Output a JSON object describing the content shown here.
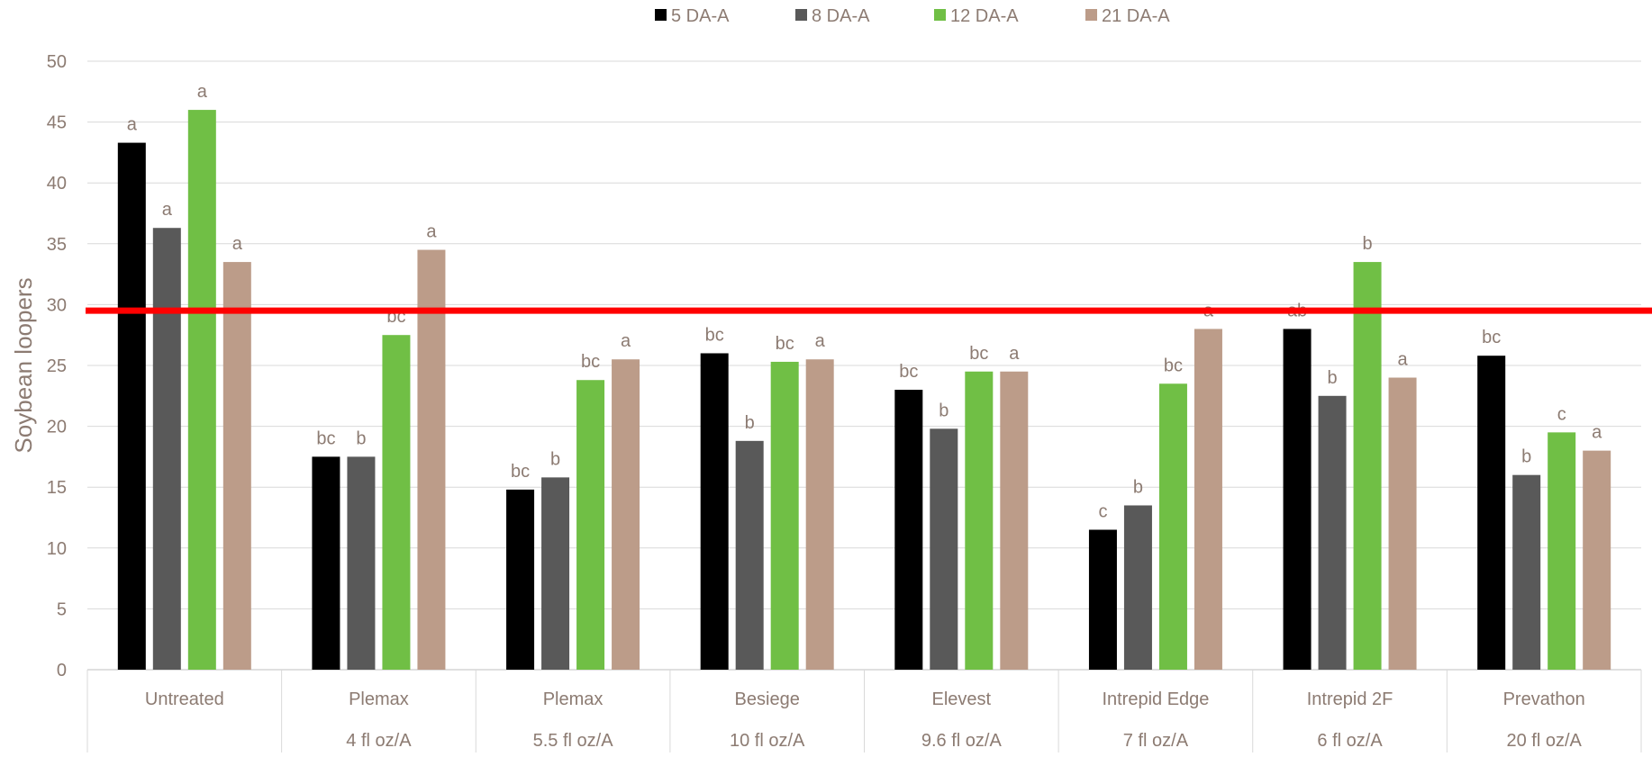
{
  "chart_data": {
    "type": "bar",
    "title": "",
    "xlabel": "",
    "ylabel": "Soybean loopers",
    "ylim": [
      0,
      50
    ],
    "yticks": [
      0,
      5,
      10,
      15,
      20,
      25,
      30,
      35,
      40,
      45,
      50
    ],
    "grid": true,
    "legend_position": "top-center",
    "categories": [
      {
        "name": "Untreated",
        "rate": ""
      },
      {
        "name": "Plemax",
        "rate": "4 fl oz/A"
      },
      {
        "name": "Plemax",
        "rate": "5.5 fl oz/A"
      },
      {
        "name": "Besiege",
        "rate": "10 fl oz/A"
      },
      {
        "name": "Elevest",
        "rate": "9.6 fl oz/A"
      },
      {
        "name": "Intrepid Edge",
        "rate": "7 fl oz/A"
      },
      {
        "name": "Intrepid 2F",
        "rate": "6 fl oz/A"
      },
      {
        "name": "Prevathon",
        "rate": "20 fl oz/A"
      }
    ],
    "series": [
      {
        "name": "5 DA-A",
        "color": "#000000",
        "values": [
          43.3,
          17.5,
          14.8,
          26.0,
          23.0,
          11.5,
          28.0,
          25.8
        ],
        "labels": [
          "a",
          "bc",
          "bc",
          "bc",
          "bc",
          "c",
          "ab",
          "bc"
        ]
      },
      {
        "name": "8 DA-A",
        "color": "#595959",
        "values": [
          36.3,
          17.5,
          15.8,
          18.8,
          19.8,
          13.5,
          22.5,
          16.0
        ],
        "labels": [
          "a",
          "b",
          "b",
          "b",
          "b",
          "b",
          "b",
          "b"
        ]
      },
      {
        "name": "12 DA-A",
        "color": "#70BF45",
        "values": [
          46.0,
          27.5,
          23.8,
          25.3,
          24.5,
          23.5,
          33.5,
          19.5
        ],
        "labels": [
          "a",
          "bc",
          "bc",
          "bc",
          "bc",
          "bc",
          "b",
          "c"
        ]
      },
      {
        "name": "21 DA-A",
        "color": "#BC9C89",
        "values": [
          33.5,
          34.5,
          25.5,
          25.5,
          24.5,
          28.0,
          24.0,
          18.0
        ],
        "labels": [
          "a",
          "a",
          "a",
          "a",
          "a",
          "a",
          "a",
          "a"
        ]
      }
    ],
    "threshold": {
      "value": 29.5,
      "color": "#FF0000"
    },
    "colors": {
      "axis_text": "#8C7B72",
      "gridline": "#D9D9D9",
      "label_text": "#8C7B72"
    }
  }
}
